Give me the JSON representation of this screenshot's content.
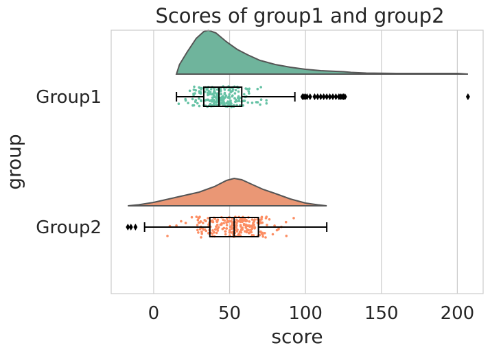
{
  "chart_data": {
    "type": "raincloud",
    "title": "Scores of group1 and group2",
    "xlabel": "score",
    "ylabel": "group",
    "xlim": [
      -28,
      217
    ],
    "xticks": [
      0,
      50,
      100,
      150,
      200
    ],
    "grid": "vertical",
    "categories": [
      "Group1",
      "Group2"
    ],
    "series": [
      {
        "name": "Group1",
        "color": "#66c2a5",
        "density_color": "#6fb49c",
        "box": {
          "whisker_low": 15,
          "q1": 33,
          "median": 43,
          "q3": 58,
          "whisker_high": 93
        },
        "outliers": [
          98,
          99,
          100,
          101,
          103,
          106,
          108,
          110,
          112,
          114,
          116,
          118,
          120,
          122,
          123,
          124,
          125,
          126,
          207
        ],
        "range": [
          15,
          207
        ],
        "density_peak": 36,
        "point_mean": 45,
        "point_sd": 17
      },
      {
        "name": "Group2",
        "color": "#fc8d62",
        "density_color": "#ea9775",
        "box": {
          "whisker_low": -6,
          "q1": 37,
          "median": 53,
          "q3": 69,
          "whisker_high": 114
        },
        "outliers": [
          -17,
          -15,
          -12
        ],
        "range": [
          -17,
          114
        ],
        "density_peak": 52,
        "point_mean": 53,
        "point_sd": 23
      }
    ]
  }
}
